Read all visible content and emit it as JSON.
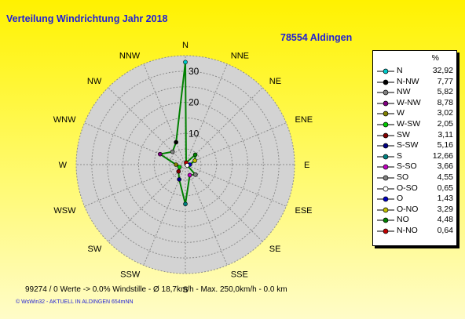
{
  "chart_data": {
    "type": "radar",
    "title": "Verteilung Windrichtung   Jahr 2018",
    "subtitle": "78554 Aldingen",
    "unit": "%",
    "directions": [
      "N",
      "NNE",
      "NE",
      "ENE",
      "E",
      "ESE",
      "SE",
      "SSE",
      "S",
      "SSW",
      "SW",
      "WSW",
      "W",
      "WNW",
      "NW",
      "NNW"
    ],
    "ticks": [
      10,
      20,
      30
    ],
    "rmax": 35,
    "polygon": {
      "N": 32.92,
      "NNE": 0.64,
      "NE": 4.48,
      "ENE": 3.29,
      "E": 1.43,
      "ESE": 0.65,
      "SE": 4.55,
      "SSE": 3.66,
      "S": 12.66,
      "SSW": 5.16,
      "SW": 3.11,
      "WSW": 2.05,
      "W": 3.02,
      "WNW": 8.78,
      "NW": 5.82,
      "NNW": 7.77
    },
    "legend": [
      {
        "name": "N",
        "value": "32,92",
        "color": "#00c8c8"
      },
      {
        "name": "N-NW",
        "value": "7,77",
        "color": "#000000"
      },
      {
        "name": "NW",
        "value": "5,82",
        "color": "#808080"
      },
      {
        "name": "W-NW",
        "value": "8,78",
        "color": "#800080"
      },
      {
        "name": "W",
        "value": "3,02",
        "color": "#808000"
      },
      {
        "name": "W-SW",
        "value": "2,05",
        "color": "#00c800"
      },
      {
        "name": "SW",
        "value": "3,11",
        "color": "#800000"
      },
      {
        "name": "S-SW",
        "value": "5,16",
        "color": "#000080"
      },
      {
        "name": "S",
        "value": "12,66",
        "color": "#008080"
      },
      {
        "name": "S-SO",
        "value": "3,66",
        "color": "#c000c0"
      },
      {
        "name": "SO",
        "value": "4,55",
        "color": "#808080"
      },
      {
        "name": "O-SO",
        "value": "0,65",
        "color": "#ffffff"
      },
      {
        "name": "O",
        "value": "1,43",
        "color": "#0000c0"
      },
      {
        "name": "O-NO",
        "value": "3,29",
        "color": "#c0c000"
      },
      {
        "name": "NO",
        "value": "4,48",
        "color": "#008000"
      },
      {
        "name": "N-NO",
        "value": "0,64",
        "color": "#c00000"
      }
    ],
    "grid": true,
    "legend_position": "right"
  },
  "footer": {
    "stats": "99274 / 0 Werte  -> 0.0% Windstille   -   Ø 18,7km/h  -  Max. 250,0km/h   -    0.0 km",
    "credit": "© WsWin32  -  AKTUELL IN ALDINGEN 654mNN"
  },
  "colors": {
    "plot_bg": "#d3d3d3",
    "grid": "#8c8c8c",
    "series": "#008000"
  }
}
